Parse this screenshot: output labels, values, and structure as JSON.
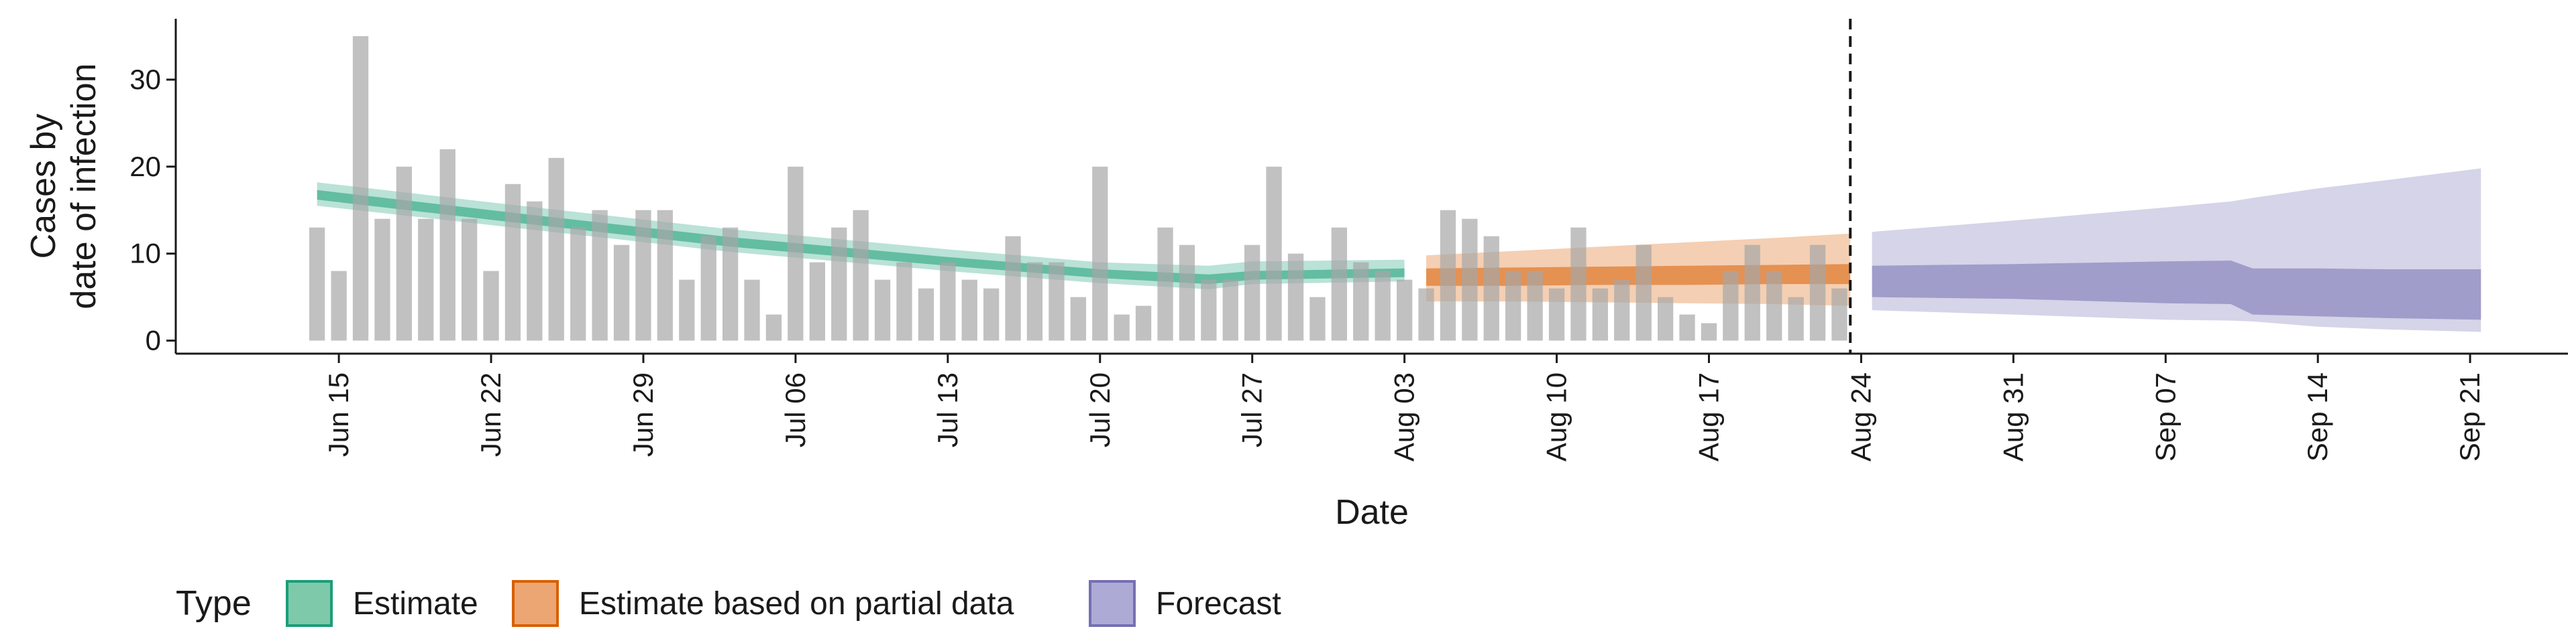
{
  "chart_data": {
    "type": "bar",
    "xlabel": "Date",
    "ylabel_lines": [
      "Cases by",
      "date of infection"
    ],
    "ylim": [
      -1.5,
      37
    ],
    "y_ticks": [
      0,
      10,
      20,
      30
    ],
    "x_ticks": [
      "Jun 15",
      "Jun 22",
      "Jun 29",
      "Jul 06",
      "Jul 13",
      "Jul 20",
      "Jul 27",
      "Aug 03",
      "Aug 10",
      "Aug 17",
      "Aug 24",
      "Aug 31",
      "Sep 07",
      "Sep 14",
      "Sep 21"
    ],
    "x_tick_days": [
      12,
      19,
      26,
      33,
      40,
      47,
      54,
      61,
      68,
      75,
      82,
      89,
      96,
      103,
      110
    ],
    "xlim_days": [
      4.5,
      114.5
    ],
    "date_origin": "Jun 03",
    "bars_first_day": 11,
    "bar_values": [
      13,
      8,
      35,
      14,
      20,
      14,
      22,
      14,
      8,
      18,
      16,
      21,
      13,
      15,
      11,
      15,
      15,
      7,
      12,
      13,
      7,
      3,
      20,
      9,
      13,
      15,
      7,
      9,
      6,
      9,
      7,
      6,
      12,
      9,
      9,
      5,
      20,
      3,
      4,
      13,
      11,
      7,
      7,
      11,
      20,
      10,
      5,
      13,
      9,
      8,
      7,
      6,
      15,
      14,
      12,
      8,
      8,
      6,
      13,
      6,
      7,
      11,
      5,
      3,
      2,
      8,
      11,
      8,
      5,
      11,
      6
    ],
    "forecast_date_day": 81.5,
    "legend": {
      "title": "Type",
      "items": [
        {
          "label": "Estimate",
          "fill": "#7fc9ab",
          "stroke": "#1b9e77"
        },
        {
          "label": "Estimate based on partial data",
          "fill": "#eba673",
          "stroke": "#d95f02"
        },
        {
          "label": "Forecast",
          "fill": "#aeaad6",
          "stroke": "#7570b3"
        }
      ]
    },
    "bands": [
      {
        "name": "Estimate",
        "color": "#1b9e77",
        "days": [
          11,
          20,
          30,
          40,
          47,
          52,
          54,
          61
        ],
        "outer_lo": [
          15.5,
          13,
          10.2,
          8.0,
          6.6,
          5.9,
          6.5,
          6.8
        ],
        "outer_hi": [
          18.2,
          15.6,
          12.8,
          10.5,
          9.0,
          8.6,
          9.1,
          9.3
        ],
        "inner_lo": [
          16.2,
          13.6,
          10.8,
          8.6,
          7.2,
          6.5,
          7.0,
          7.3
        ],
        "inner_hi": [
          17.3,
          14.7,
          11.9,
          9.6,
          8.2,
          7.6,
          8.0,
          8.3
        ]
      },
      {
        "name": "Estimate based on partial data",
        "color": "#d95f02",
        "days": [
          62,
          66,
          70,
          74,
          78,
          81.5
        ],
        "outer_lo": [
          4.5,
          4.5,
          4.4,
          4.3,
          4.2,
          4.0
        ],
        "outer_hi": [
          9.8,
          10.3,
          10.8,
          11.3,
          11.8,
          12.3
        ],
        "inner_lo": [
          6.3,
          6.3,
          6.4,
          6.4,
          6.5,
          6.5
        ],
        "inner_hi": [
          8.3,
          8.4,
          8.5,
          8.6,
          8.7,
          8.8
        ]
      },
      {
        "name": "Forecast",
        "color": "#7570b3",
        "days": [
          82.5,
          89,
          96,
          99,
          100,
          103,
          106,
          110.5
        ],
        "outer_lo": [
          3.5,
          3.0,
          2.4,
          2.3,
          2.2,
          1.6,
          1.3,
          1.0
        ],
        "outer_hi": [
          12.5,
          13.8,
          15.3,
          16.0,
          16.4,
          17.5,
          18.4,
          19.8
        ],
        "inner_lo": [
          5.0,
          4.8,
          4.3,
          4.2,
          3.0,
          2.8,
          2.6,
          2.4
        ],
        "inner_hi": [
          8.6,
          8.8,
          9.1,
          9.2,
          8.3,
          8.3,
          8.2,
          8.2
        ]
      }
    ]
  }
}
